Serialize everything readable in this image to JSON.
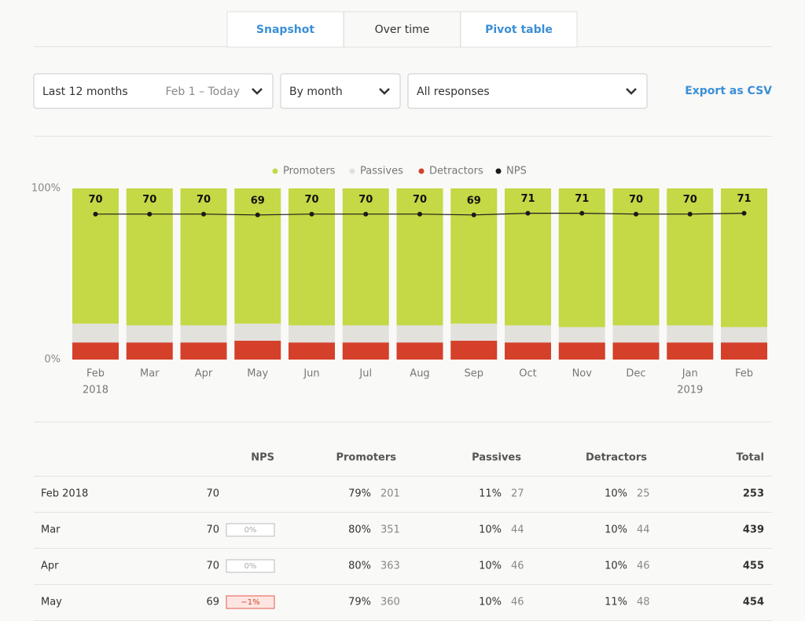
{
  "tabs": [
    "Snapshot",
    "Over time",
    "Pivot table"
  ],
  "active_tab": 1,
  "filters": {
    "range": "Last 12 months",
    "range_detail": "Feb 1 – Today",
    "interval": "By month",
    "responses": "All responses"
  },
  "export": "Export as CSV",
  "chart_data": {
    "type": "bar",
    "stacked": true,
    "categories": [
      "Feb",
      "Mar",
      "Apr",
      "May",
      "Jun",
      "Jul",
      "Aug",
      "Sep",
      "Oct",
      "Nov",
      "Dec",
      "Jan",
      "Feb"
    ],
    "year_labels": [
      "2018",
      null,
      null,
      null,
      null,
      null,
      null,
      null,
      null,
      null,
      null,
      "2019",
      null
    ],
    "ylim": [
      0,
      100
    ],
    "yticks": [
      {
        "value": 0,
        "label": "0%"
      },
      {
        "value": 100,
        "label": "100%"
      }
    ],
    "y2lim": [
      -100,
      100
    ],
    "grid": false,
    "legend": "top",
    "series": [
      {
        "name": "Promoters",
        "color": "#c5d845",
        "values": [
          79,
          80,
          80,
          79,
          80,
          80,
          80,
          79,
          80,
          81,
          80,
          80,
          81
        ]
      },
      {
        "name": "Passives",
        "color": "#e2e1dc",
        "values": [
          11,
          10,
          10,
          10,
          10,
          10,
          10,
          10,
          10,
          9,
          10,
          10,
          9
        ]
      },
      {
        "name": "Detractors",
        "color": "#d4402a",
        "values": [
          10,
          10,
          10,
          11,
          10,
          10,
          10,
          11,
          10,
          10,
          10,
          10,
          10
        ]
      },
      {
        "name": "NPS",
        "color": "#1a1a1a",
        "axis": "y2",
        "type": "line",
        "values": [
          70,
          70,
          70,
          69,
          70,
          70,
          70,
          69,
          71,
          71,
          70,
          70,
          71
        ]
      }
    ]
  },
  "table": {
    "headers": [
      "NPS",
      "Promoters",
      "Passives",
      "Detractors",
      "Total"
    ],
    "rows": [
      [
        "Feb 2018",
        "70",
        null,
        "79%",
        "201",
        "11%",
        "27",
        "10%",
        "25",
        "253"
      ],
      [
        "Mar",
        "70",
        "0%",
        "80%",
        "351",
        "10%",
        "44",
        "10%",
        "44",
        "439"
      ],
      [
        "Apr",
        "70",
        "0%",
        "80%",
        "363",
        "10%",
        "46",
        "10%",
        "46",
        "455"
      ],
      [
        "May",
        "69",
        "−1%",
        "79%",
        "360",
        "10%",
        "46",
        "11%",
        "48",
        "454"
      ]
    ]
  }
}
